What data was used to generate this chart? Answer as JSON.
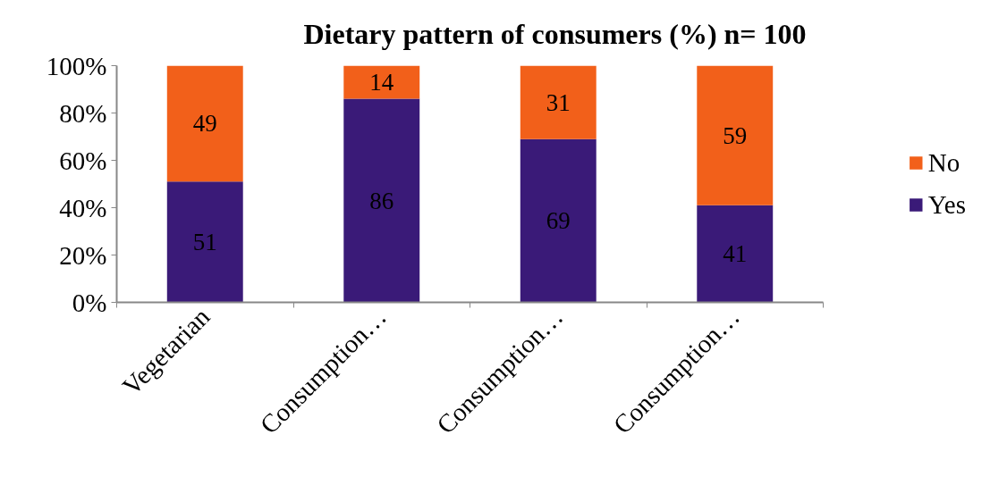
{
  "chart_data": {
    "type": "bar",
    "title": "Dietary pattern of consumers (%) n= 100",
    "categories": [
      "Vegetarian",
      "Consumption…",
      "Consumption…",
      "Consumption…"
    ],
    "stacked": true,
    "series": [
      {
        "name": "Yes",
        "color": "#3a1a78",
        "values": [
          51,
          86,
          69,
          41
        ]
      },
      {
        "name": "No",
        "color": "#f2601a",
        "values": [
          49,
          14,
          31,
          59
        ]
      }
    ],
    "ylim": [
      0,
      100
    ],
    "yticks": [
      {
        "value": 0,
        "label": "0%"
      },
      {
        "value": 20,
        "label": "20%"
      },
      {
        "value": 40,
        "label": "40%"
      },
      {
        "value": 60,
        "label": "60%"
      },
      {
        "value": 80,
        "label": "80%"
      },
      {
        "value": 100,
        "label": "100%"
      }
    ],
    "data_labels": true,
    "grid": false,
    "legend": "right"
  }
}
